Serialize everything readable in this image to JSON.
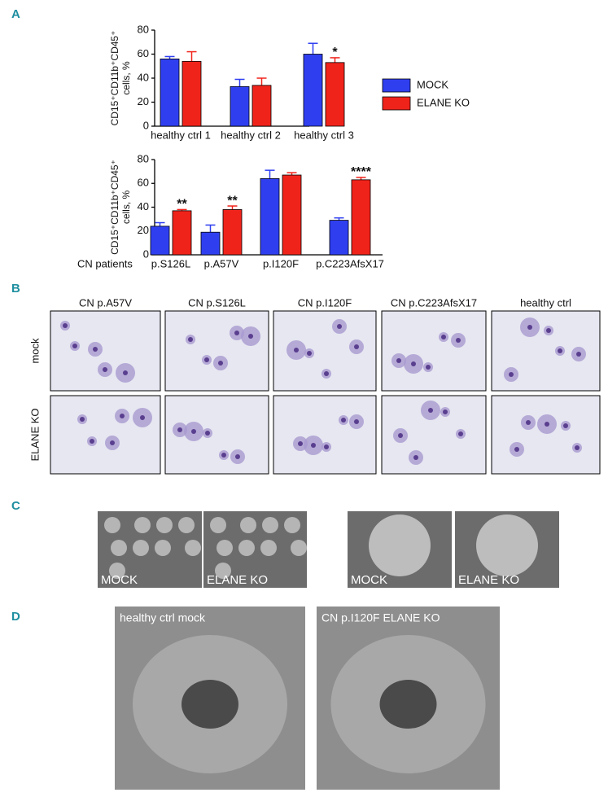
{
  "panel_labels": [
    "A",
    "B",
    "C",
    "D"
  ],
  "chart_data": [
    {
      "type": "bar",
      "y_label": [
        "CD15⁺CD11b⁺CD45⁺",
        "cells, %"
      ],
      "categories": [
        "healthy ctrl 1",
        "healthy ctrl 2",
        "healthy ctrl 3"
      ],
      "series": [
        {
          "name": "MOCK",
          "color": "#2f3ff0",
          "values": [
            56,
            33,
            60
          ],
          "errors": [
            2,
            6,
            9
          ]
        },
        {
          "name": "ELANE KO",
          "color": "#f0231b",
          "values": [
            54,
            34,
            53
          ],
          "errors": [
            8,
            6,
            4
          ],
          "significance": [
            null,
            null,
            "*"
          ]
        }
      ],
      "ylim": [
        0,
        80
      ],
      "yticks": [
        0,
        20,
        40,
        60,
        80
      ]
    },
    {
      "type": "bar",
      "y_label": [
        "CD15⁺CD11b⁺CD45⁺",
        "cells, %"
      ],
      "x_label": "CN patients",
      "categories": [
        "p.S126L",
        "p.A57V",
        "p.I120F",
        "p.C223AfsX17"
      ],
      "series": [
        {
          "name": "MOCK",
          "color": "#2f3ff0",
          "values": [
            24,
            19,
            64,
            29
          ],
          "errors": [
            3,
            6,
            7,
            2
          ]
        },
        {
          "name": "ELANE KO",
          "color": "#f0231b",
          "values": [
            37,
            38,
            67,
            63
          ],
          "errors": [
            1,
            3,
            2,
            2
          ],
          "significance": [
            "**",
            "**",
            null,
            "****"
          ]
        }
      ],
      "ylim": [
        0,
        80
      ],
      "yticks": [
        0,
        20,
        40,
        60,
        80
      ]
    }
  ],
  "panel_b": {
    "columns": [
      "CN p.A57V",
      "CN p.S126L",
      "CN p.I120F",
      "CN p.C223AfsX17",
      "healthy ctrl"
    ],
    "rows": [
      "mock",
      "ELANE KO"
    ]
  },
  "panel_c": {
    "labels": [
      "MOCK",
      "ELANE KO",
      "MOCK",
      "ELANE KO"
    ]
  },
  "panel_d": {
    "labels": [
      "healthy ctrl mock",
      "CN p.I120F ELANE KO"
    ]
  }
}
